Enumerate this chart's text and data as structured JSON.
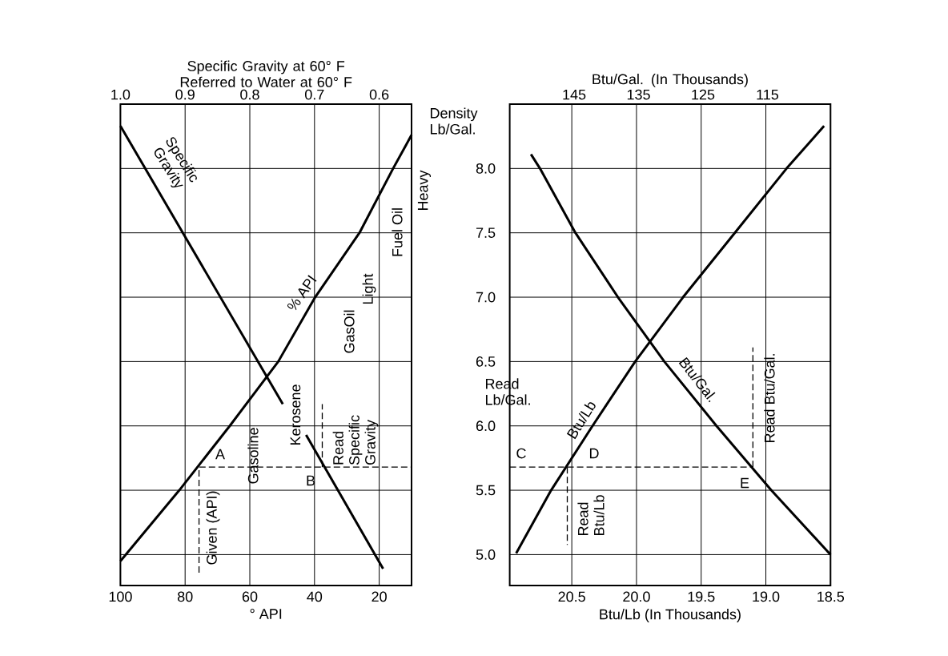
{
  "chart_data": [
    {
      "type": "line",
      "xlim": [
        100,
        10
      ],
      "xticks": [
        100,
        80,
        60,
        40,
        20
      ],
      "x2lim": [
        1.0,
        0.55
      ],
      "x2ticks": [
        {
          "value": 1.0,
          "label": "1.0"
        },
        0.9,
        0.8,
        0.7,
        0.6
      ],
      "ylim": [
        4.76,
        8.5
      ],
      "yticks": [
        5,
        5.5,
        6,
        6.5,
        7,
        7.5,
        8
      ],
      "tick_labels": "x",
      "grid": true,
      "xlabel": "° API",
      "x2label": "Specific Gravity at 60° F Referred to Water at 60° F",
      "series": [
        {
          "color": "#000000",
          "x": [
            100,
            81.8,
            66.2,
            51.2,
            39.8,
            26.1,
            15.7,
            10
          ],
          "values": [
            4.95,
            5.5,
            6.0,
            6.5,
            7.0,
            7.5,
            8.0,
            8.26
          ]
        },
        {
          "color": "#000000",
          "axis": "x2",
          "x": [
            1.0,
            0.749,
            0.73,
            0.713,
            0.594
          ],
          "values": [
            8.33,
            6.17,
            null,
            5.93,
            4.89
          ]
        },
        {
          "color": "#000000",
          "line_style": "dashed",
          "x": [
            75.7,
            75.7,
            10
          ],
          "values": [
            4.86,
            5.68,
            5.68
          ]
        },
        {
          "color": "#000000",
          "line_style": "dashed",
          "x": [
            37.6,
            37.6
          ],
          "values": [
            5.68,
            6.17
          ]
        }
      ],
      "annotations": [
        "Specific Gravity",
        "% API",
        "GasOil",
        "Light",
        "Fuel Oil",
        "Heavy",
        "Kerosene",
        "Gasoline",
        "A",
        "B",
        "Given (API)",
        "Read Specific Gravity"
      ]
    },
    {
      "type": "line",
      "xlim": [
        20.98,
        18.5
      ],
      "xticks": [
        20.5,
        {
          "value": 20,
          "label": "20.0"
        },
        19.5,
        {
          "value": 19,
          "label": "19.0"
        },
        18.5
      ],
      "x2lim": [
        155,
        105.2
      ],
      "x2ticks": [
        145,
        135,
        125,
        115
      ],
      "ylim": [
        4.76,
        8.5
      ],
      "yticks": [
        {
          "value": 5,
          "label": "5.0"
        },
        5.5,
        {
          "value": 6,
          "label": "6.0"
        },
        6.5,
        {
          "value": 7,
          "label": "7.0"
        },
        7.5,
        {
          "value": 8,
          "label": "8.0"
        }
      ],
      "grid": true,
      "xlabel": "Btu/Lb (In Thousands)",
      "x2label": "Btu/Gal. (In Thousands)",
      "ylabel": "Density Lb/Gal.",
      "series": [
        {
          "color": "#000000",
          "x": [
            20.93,
            20.66,
            20.34,
            20.01,
            19.64,
            19.24,
            18.84,
            18.55
          ],
          "values": [
            5.01,
            5.5,
            6.0,
            6.5,
            7.0,
            7.5,
            8.0,
            8.33
          ]
        },
        {
          "color": "#000000",
          "axis": "x2",
          "x": [
            151.7,
            150.3,
            144.8,
            138.2,
            131.0,
            122.9,
            114.4,
            105.2
          ],
          "values": [
            8.11,
            8.0,
            7.5,
            7.0,
            6.5,
            6.0,
            5.5,
            5.0
          ]
        },
        {
          "color": "#000000",
          "line_style": "dashed",
          "x": [
            20.98,
            19.1
          ],
          "values": [
            5.68,
            5.68
          ]
        },
        {
          "color": "#000000",
          "line_style": "dashed",
          "x": [
            20.535,
            20.535
          ],
          "values": [
            5.68,
            5.075
          ]
        },
        {
          "color": "#000000",
          "line_style": "dashed",
          "x": [
            19.1,
            19.1
          ],
          "values": [
            5.68,
            6.61
          ]
        }
      ],
      "annotations": [
        "Btu/Lb",
        "Btu/Gal.",
        "C",
        "D",
        "E",
        "Read Btu/Lb",
        "Read Btu/Gal.",
        "Read Lb/Gal."
      ]
    }
  ]
}
